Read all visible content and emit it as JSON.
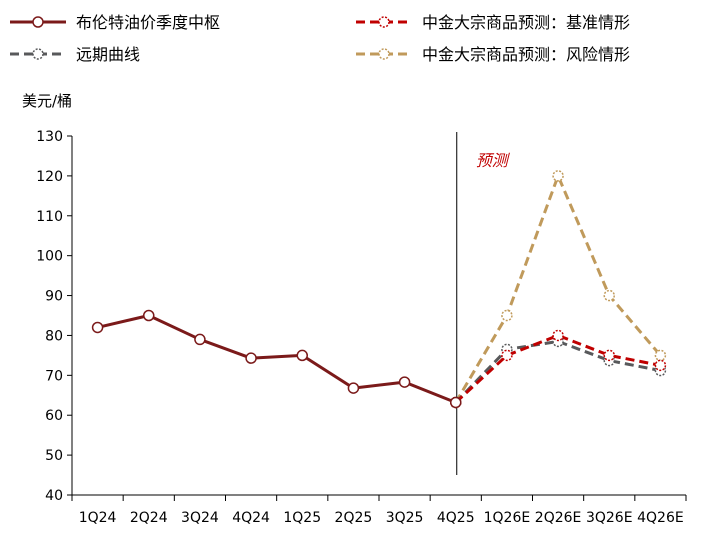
{
  "chart_data": {
    "type": "line",
    "title": "",
    "ylabel": "美元/桶",
    "xlabel": "",
    "ylim": [
      40,
      130
    ],
    "yticks": [
      40,
      50,
      60,
      70,
      80,
      90,
      100,
      110,
      120,
      130
    ],
    "grid": false,
    "categories": [
      "1Q24",
      "2Q24",
      "3Q24",
      "4Q24",
      "1Q25",
      "2Q25",
      "3Q25",
      "4Q25",
      "1Q26E",
      "2Q26E",
      "3Q26E",
      "4Q26E"
    ],
    "divider_after": "4Q25",
    "annotation": "预测",
    "series": [
      {
        "name": "布伦特油价季度中枢",
        "color": "#7b1a1a",
        "style": "solid",
        "values": [
          82,
          85,
          79,
          74.3,
          75,
          66.8,
          68.3,
          63.2,
          null,
          null,
          null,
          null
        ]
      },
      {
        "name": "远期曲线",
        "color": "#58595b",
        "style": "dashed",
        "values": [
          null,
          null,
          null,
          null,
          null,
          null,
          null,
          63.2,
          76.5,
          78.5,
          73.7,
          71.2
        ]
      },
      {
        "name": "中金大宗商品预测：基准情形",
        "color": "#c00000",
        "style": "dashed",
        "values": [
          null,
          null,
          null,
          null,
          null,
          null,
          null,
          63.2,
          75,
          80,
          75,
          72.5
        ]
      },
      {
        "name": "中金大宗商品预测：风险情形",
        "color": "#c09a5b",
        "style": "dashed",
        "values": [
          null,
          null,
          null,
          null,
          null,
          null,
          null,
          63.2,
          85,
          120,
          90,
          75
        ]
      }
    ],
    "legend_order": [
      0,
      2,
      1,
      3
    ]
  }
}
